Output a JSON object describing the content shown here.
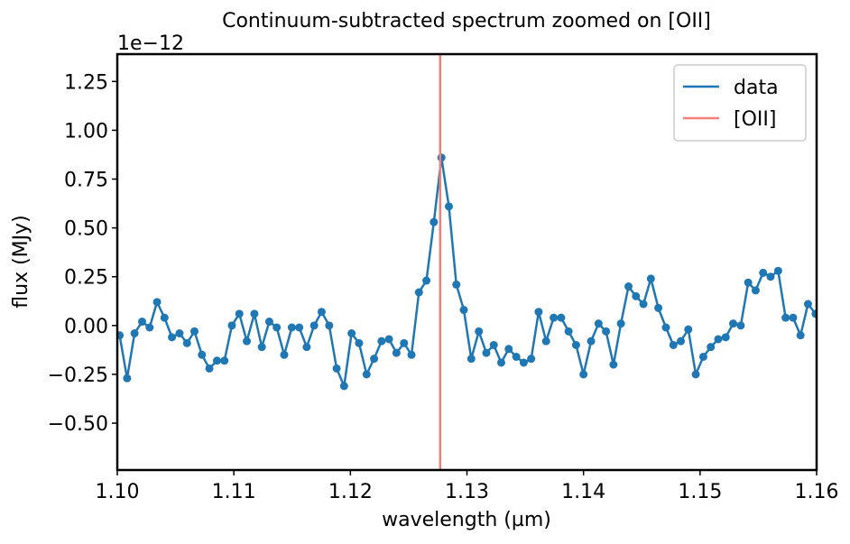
{
  "chart_data": {
    "type": "line",
    "title": "Continuum-subtracted spectrum zoomed on [OII]",
    "xlabel": "wavelength (µm)",
    "ylabel": "flux (MJy)",
    "y_offset_text": "1e−12",
    "x": [
      1.1002,
      1.10084,
      1.10148,
      1.10213,
      1.10277,
      1.10341,
      1.10405,
      1.10469,
      1.10534,
      1.10598,
      1.10662,
      1.10726,
      1.1079,
      1.10855,
      1.10919,
      1.10983,
      1.11047,
      1.11111,
      1.11176,
      1.1124,
      1.11304,
      1.11368,
      1.11432,
      1.11497,
      1.11561,
      1.11625,
      1.11689,
      1.11753,
      1.11818,
      1.11882,
      1.11946,
      1.1201,
      1.12074,
      1.12139,
      1.12203,
      1.12267,
      1.12331,
      1.12395,
      1.1246,
      1.12524,
      1.12588,
      1.12652,
      1.12716,
      1.12781,
      1.12845,
      1.12909,
      1.12973,
      1.13037,
      1.13102,
      1.13166,
      1.1323,
      1.13294,
      1.13358,
      1.13423,
      1.13487,
      1.13551,
      1.13615,
      1.13679,
      1.13744,
      1.13808,
      1.13872,
      1.13936,
      1.14,
      1.14065,
      1.14129,
      1.14193,
      1.14257,
      1.14321,
      1.14386,
      1.1445,
      1.14514,
      1.14578,
      1.14642,
      1.14707,
      1.14771,
      1.14835,
      1.14899,
      1.14963,
      1.15028,
      1.15092,
      1.15156,
      1.1522,
      1.15284,
      1.15349,
      1.15413,
      1.15477,
      1.15541,
      1.15605,
      1.1567,
      1.15734,
      1.15798,
      1.15862,
      1.15926,
      1.15991,
      1.16055
    ],
    "series": [
      {
        "name": "data",
        "color": "#1f77b4",
        "values": [
          -0.05,
          -0.27,
          -0.04,
          0.02,
          -0.01,
          0.12,
          0.04,
          -0.06,
          -0.04,
          -0.09,
          -0.03,
          -0.15,
          -0.22,
          -0.18,
          -0.18,
          0.0,
          0.06,
          -0.08,
          0.06,
          -0.11,
          0.02,
          -0.01,
          -0.15,
          -0.01,
          -0.01,
          -0.11,
          0.0,
          0.07,
          0.0,
          -0.22,
          -0.31,
          -0.04,
          -0.09,
          -0.25,
          -0.17,
          -0.08,
          -0.07,
          -0.14,
          -0.09,
          -0.15,
          0.17,
          0.23,
          0.53,
          0.86,
          0.61,
          0.21,
          0.08,
          -0.17,
          -0.03,
          -0.14,
          -0.1,
          -0.19,
          -0.12,
          -0.16,
          -0.19,
          -0.17,
          0.07,
          -0.08,
          0.04,
          0.04,
          -0.03,
          -0.1,
          -0.25,
          -0.08,
          0.01,
          -0.03,
          -0.2,
          0.01,
          0.2,
          0.15,
          0.11,
          0.24,
          0.09,
          -0.01,
          -0.1,
          -0.08,
          -0.02,
          -0.25,
          -0.16,
          -0.11,
          -0.07,
          -0.06,
          0.01,
          0.0,
          0.22,
          0.18,
          0.27,
          0.25,
          0.28,
          0.04,
          0.04,
          -0.05,
          0.11,
          0.06,
          -0.05
        ]
      }
    ],
    "vlines": [
      {
        "name": "[OII]",
        "x": 1.1277,
        "color": "#f47f7a"
      }
    ],
    "xlim": [
      1.1,
      1.16
    ],
    "ylim": [
      -0.74,
      1.39
    ],
    "xticks": [
      {
        "value": 1.1,
        "label": "1.10"
      },
      1.11,
      1.12,
      1.13,
      1.14,
      1.15,
      1.16
    ],
    "yticks": [
      {
        "value": -0.5,
        "label": "−0.50"
      },
      {
        "value": -0.25,
        "label": "−0.25"
      },
      {
        "value": 0,
        "label": "0.00"
      },
      {
        "value": 0.25,
        "label": "0.25"
      },
      {
        "value": 0.5,
        "label": "0.50"
      },
      {
        "value": 0.75,
        "label": "0.75"
      },
      {
        "value": 1,
        "label": "1.00"
      },
      {
        "value": 1.25,
        "label": "1.25"
      }
    ],
    "legend": "upper right"
  }
}
